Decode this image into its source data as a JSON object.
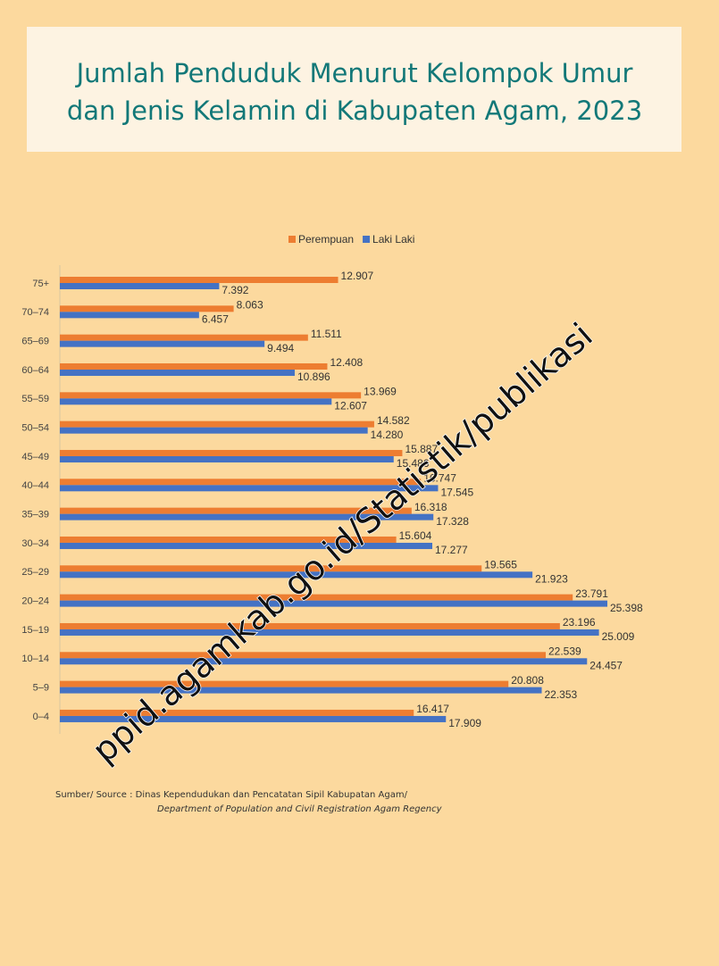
{
  "chart_data": {
    "type": "bar",
    "orientation": "horizontal",
    "title": [
      "Jumlah Penduduk Menurut Kelompok Umur",
      "dan Jenis Kelamin di Kabupaten Agam, 2023"
    ],
    "categories": [
      "75+",
      "70–74",
      "65–69",
      "60–64",
      "55–59",
      "50–54",
      "45–49",
      "40–44",
      "35–39",
      "30–34",
      "25–29",
      "20–24",
      "15–19",
      "10–14",
      "5–9",
      "0–4"
    ],
    "series": [
      {
        "name": "Perempuan",
        "color": "#ed7d31",
        "values": [
          12907,
          8063,
          11511,
          12408,
          13969,
          14582,
          15887,
          16747,
          16318,
          15604,
          19565,
          23791,
          23196,
          22539,
          20808,
          16417
        ],
        "value_labels": [
          "12.907",
          "8.063",
          "11.511",
          "12.408",
          "13.969",
          "14.582",
          "15.887",
          "16.747",
          "16.318",
          "15.604",
          "19.565",
          "23.791",
          "23.196",
          "22.539",
          "20.808",
          "16.417"
        ]
      },
      {
        "name": "Laki Laki",
        "color": "#4472c4",
        "values": [
          7392,
          6457,
          9494,
          10896,
          12607,
          14280,
          15486,
          17545,
          17328,
          17277,
          21923,
          25398,
          25009,
          24457,
          22353,
          17909
        ],
        "value_labels": [
          "7.392",
          "6.457",
          "9.494",
          "10.896",
          "12.607",
          "14.280",
          "15.486",
          "17.545",
          "17.328",
          "17.277",
          "21.923",
          "25.398",
          "25.009",
          "24.457",
          "22.353",
          "17.909"
        ]
      }
    ],
    "legend": "top",
    "source": [
      "Sumber/ Source : Dinas Kependudukan dan Pencatatan Sipil Kabupatan Agam/",
      "Department of Population and Civil Registration Agam Regency"
    ],
    "watermark": "ppid.agamkab.go.id/Statistik/publikasi"
  }
}
